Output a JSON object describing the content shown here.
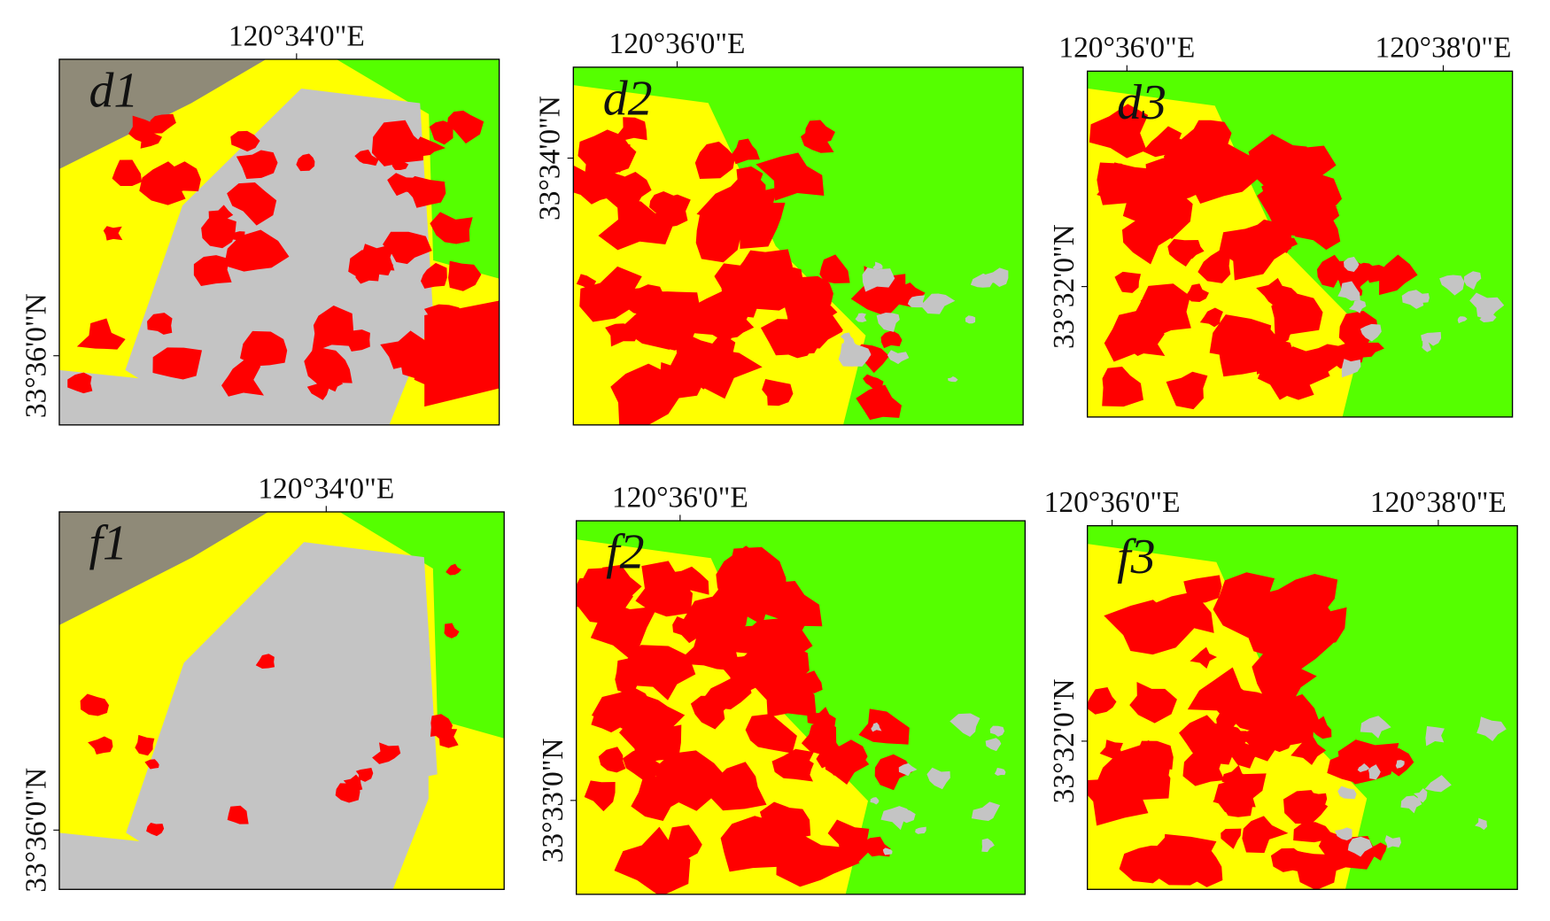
{
  "panels": [
    {
      "label": "d1",
      "top_ticks": [
        "120°34'0\"E"
      ],
      "left_ticks": [
        "33°36'0\"N"
      ]
    },
    {
      "label": "d2",
      "top_ticks": [
        "120°36'0\"E"
      ],
      "left_ticks": [
        "33°34'0\"N"
      ]
    },
    {
      "label": "d3",
      "top_ticks": [
        "120°36'0\"E",
        "120°38'0\"E"
      ],
      "left_ticks": [
        "33°32'0\"N"
      ]
    },
    {
      "label": "f1",
      "top_ticks": [
        "120°34'0\"E"
      ],
      "left_ticks": [
        "33°36'0\"N"
      ]
    },
    {
      "label": "f2",
      "top_ticks": [
        "120°36'0\"E"
      ],
      "left_ticks": [
        "33°33'0\"N"
      ]
    },
    {
      "label": "f3",
      "top_ticks": [
        "120°36'0\"E",
        "120°38'0\"E"
      ],
      "left_ticks": [
        "33°32'0\"N"
      ]
    }
  ]
}
